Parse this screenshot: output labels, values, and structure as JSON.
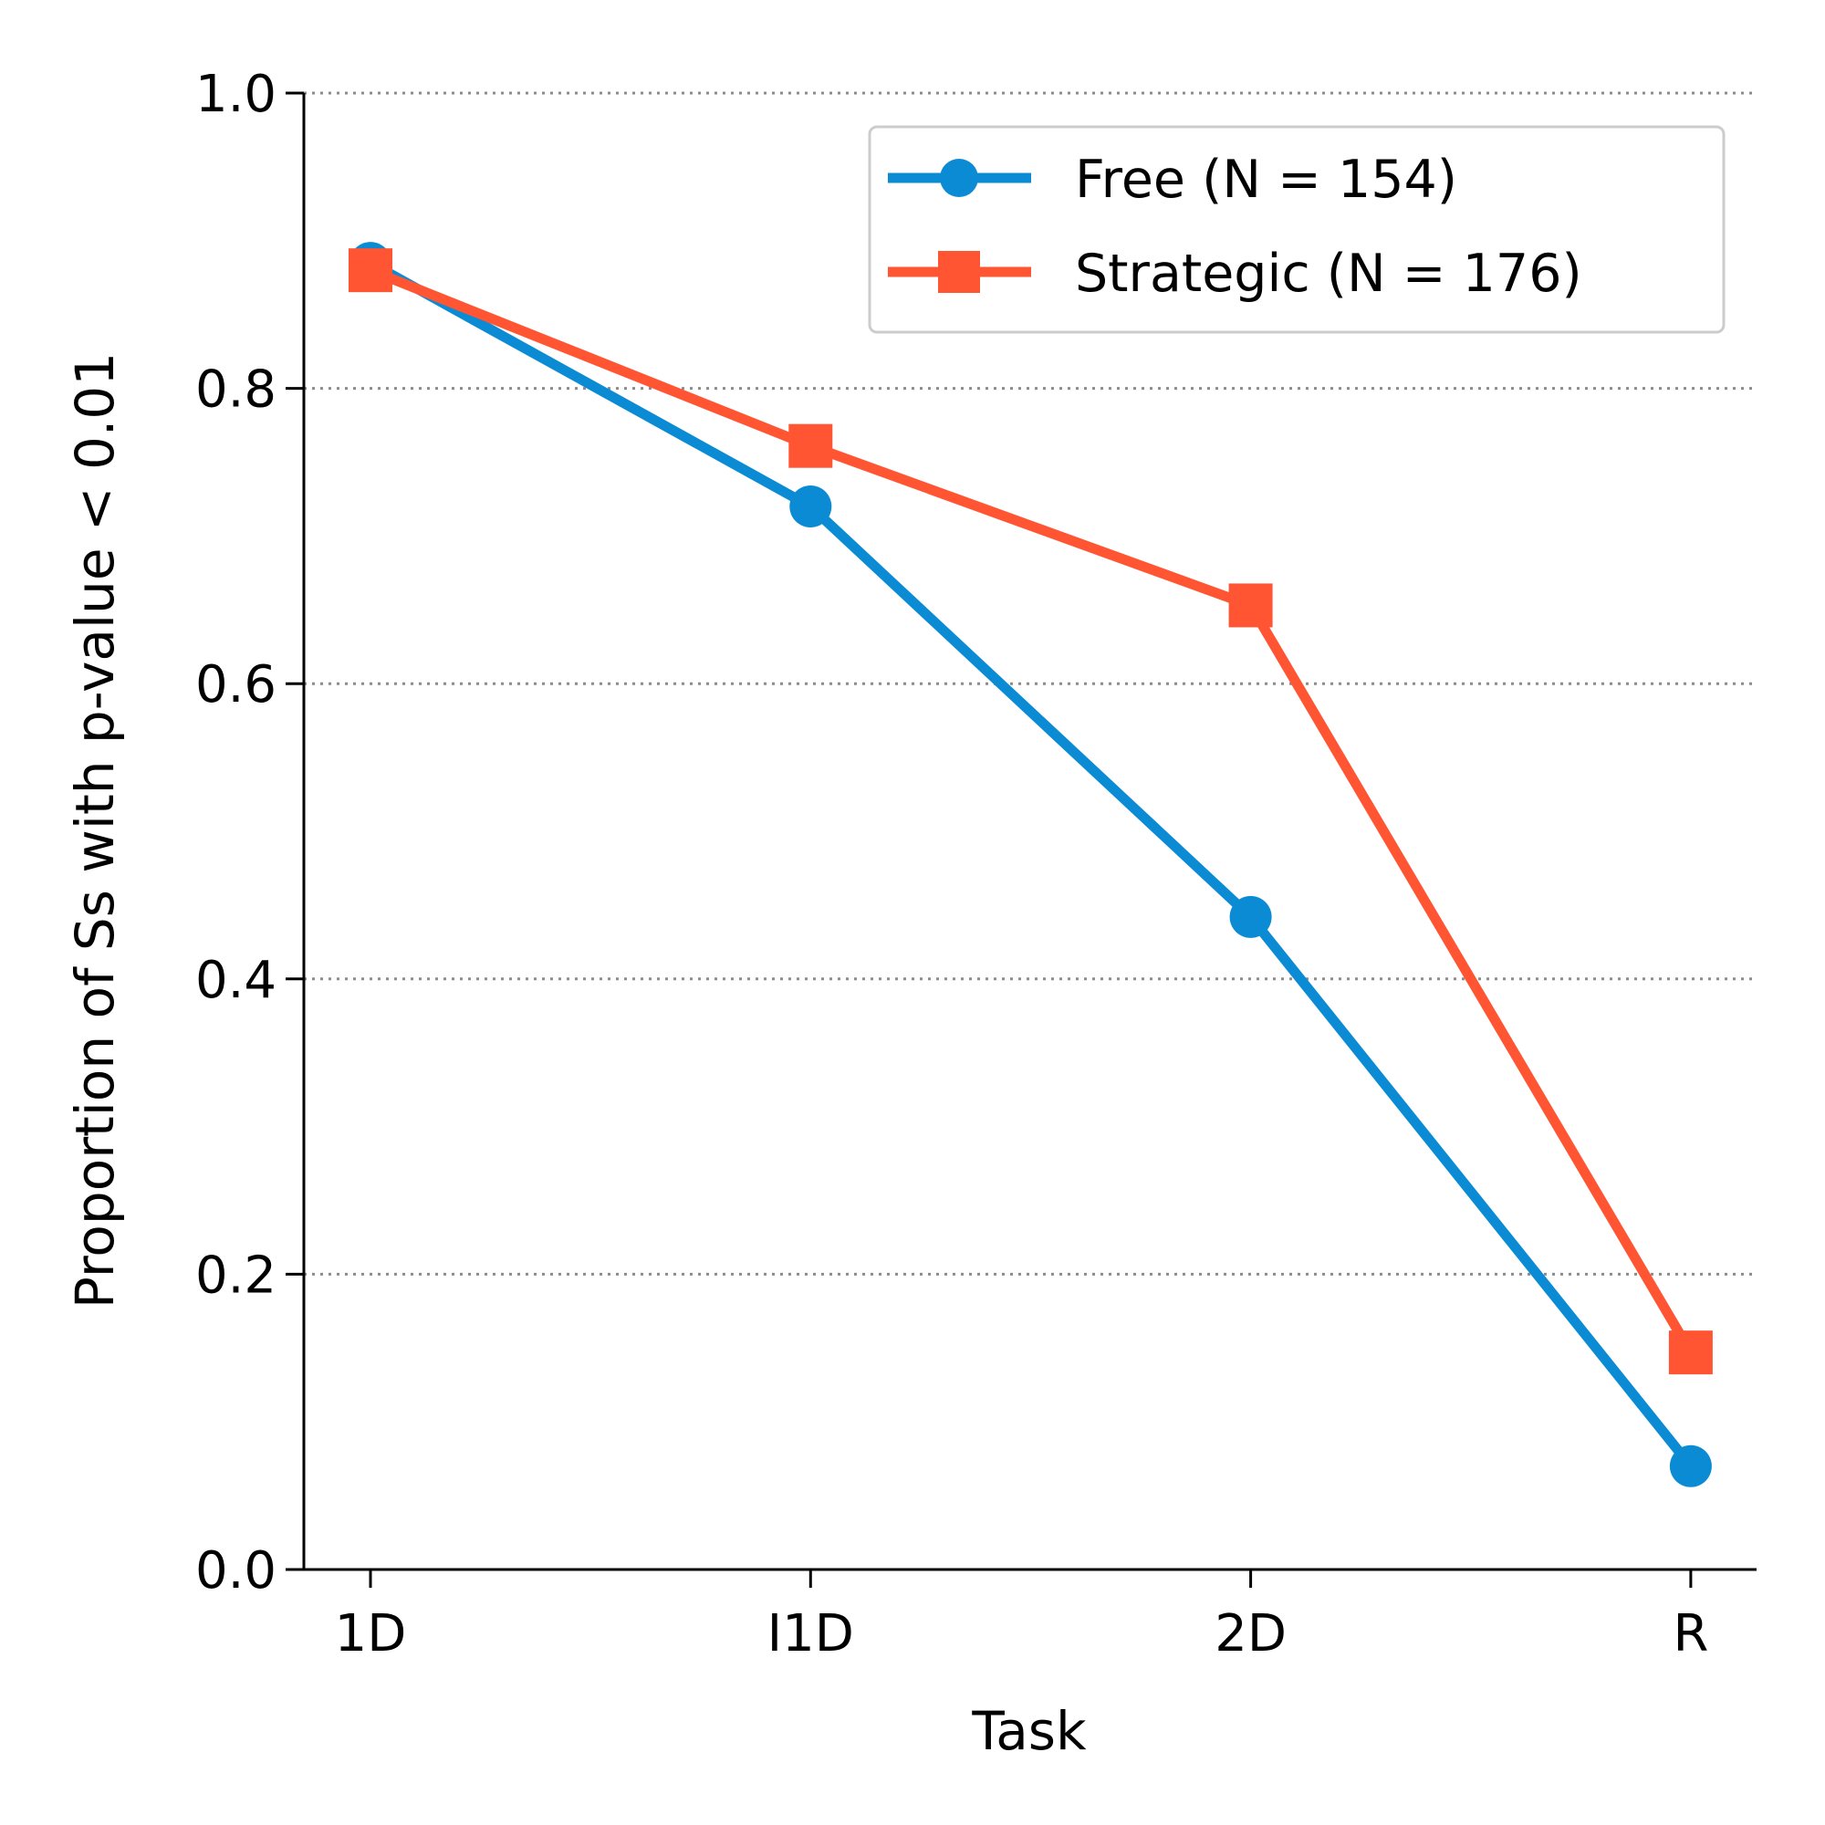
{
  "chart_data": {
    "type": "line",
    "title": "",
    "xlabel": "Task",
    "ylabel": "Proportion of Ss with p-value < 0.01",
    "categories": [
      "1D",
      "I1D",
      "2D",
      "R"
    ],
    "ylim": [
      0.0,
      1.0
    ],
    "yticks": [
      "0.0",
      "0.2",
      "0.4",
      "0.6",
      "0.8",
      "1.0"
    ],
    "grid": "horizontal dotted",
    "legend_position": "top-right",
    "series": [
      {
        "name": "Free (N = 154)",
        "values": [
          0.885,
          0.72,
          0.442,
          0.07
        ],
        "color": "#0a8bd4",
        "marker": "circle"
      },
      {
        "name": "Strategic (N = 176)",
        "values": [
          0.88,
          0.761,
          0.653,
          0.147
        ],
        "color": "#ff5533",
        "marker": "square"
      }
    ]
  }
}
